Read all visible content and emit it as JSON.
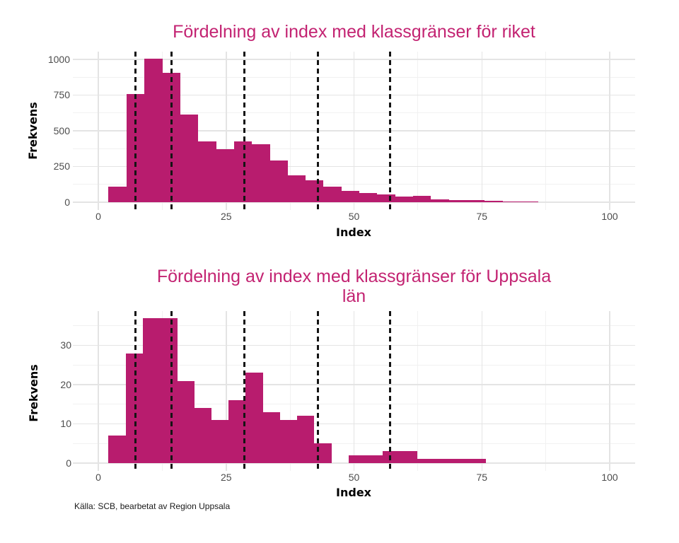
{
  "page_background": "#ffffff",
  "source_note": "Källa: SCB, bearbetat av Region Uppsala",
  "colors": {
    "bar": "#b81c6e",
    "title": "#c32372",
    "tick_label": "#4d4d4d",
    "axis_title": "#000000",
    "grid_major": "#e4e4e4",
    "grid_minor": "#f1f1f1",
    "class_line": "#141414"
  },
  "chart_data": [
    {
      "type": "bar",
      "subtype": "histogram",
      "title": "Fördelning av index med klassgränser för riket",
      "title_lines": [
        "Fördelning av index med klassgränser för riket"
      ],
      "xlabel": "Index",
      "ylabel": "Frekvens",
      "bin_start": 2,
      "bin_width": 3.5,
      "values": [
        110,
        760,
        1005,
        905,
        615,
        425,
        370,
        425,
        405,
        290,
        190,
        155,
        110,
        80,
        63,
        54,
        38,
        46,
        21,
        15,
        13,
        8,
        6,
        4
      ],
      "class_boundaries": [
        7.2,
        14.3,
        28.6,
        42.9,
        57.1
      ],
      "x_ticks": [
        0,
        25,
        50,
        75,
        100
      ],
      "y_ticks": [
        0,
        250,
        500,
        750,
        1000
      ],
      "xlim": [
        0,
        100
      ],
      "ylim": [
        0,
        1055
      ],
      "grid": "major+minor",
      "legend": "none"
    },
    {
      "type": "bar",
      "subtype": "histogram",
      "title": "Fördelning av index med klassgränser för Uppsala län",
      "title_lines": [
        "Fördelning av index med klassgränser för Uppsala",
        "län"
      ],
      "xlabel": "Index",
      "ylabel": "Frekvens",
      "bin_start": 2,
      "bin_width": 3.35,
      "values": [
        7,
        28,
        37,
        37,
        21,
        14,
        11,
        16,
        23,
        13,
        11,
        12,
        5,
        0,
        2,
        2,
        3,
        3,
        1,
        1,
        1,
        1
      ],
      "class_boundaries": [
        7.2,
        14.3,
        28.6,
        42.9,
        57.1
      ],
      "x_ticks": [
        0,
        25,
        50,
        75,
        100
      ],
      "y_ticks": [
        0,
        10,
        20,
        30
      ],
      "xlim": [
        0,
        100
      ],
      "ylim": [
        0,
        38.9
      ],
      "grid": "major+minor",
      "legend": "none"
    }
  ]
}
